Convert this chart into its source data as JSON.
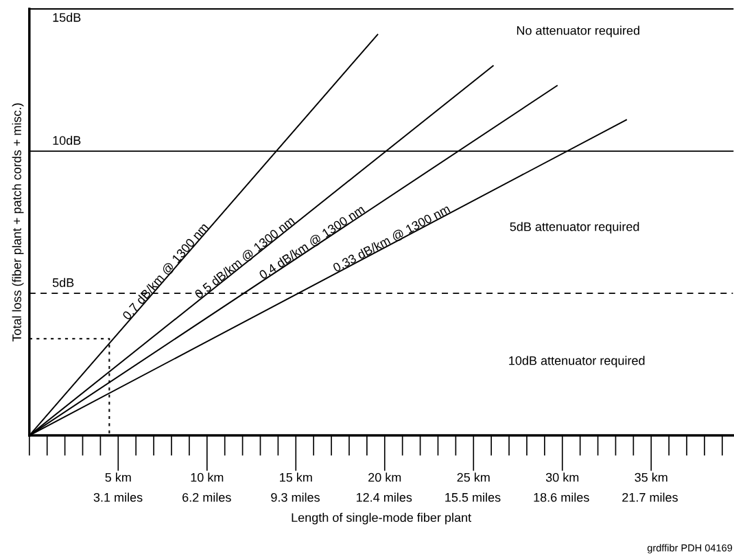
{
  "chart_data": {
    "type": "line",
    "xlabel": "Length of single-mode fiber plant",
    "ylabel": "Total loss (fiber plant + patch cords + misc.)",
    "xlim": [
      0,
      39.6
    ],
    "ylim": [
      0,
      15
    ],
    "xticks": [
      {
        "value": 5,
        "label": "5 km"
      },
      {
        "value": 10,
        "label": "10 km"
      },
      {
        "value": 15,
        "label": "15 km"
      },
      {
        "value": 20,
        "label": "20 km"
      },
      {
        "value": 25,
        "label": "25 km"
      },
      {
        "value": 30,
        "label": "30 km"
      },
      {
        "value": 35,
        "label": "35 km"
      }
    ],
    "x2lim": [
      0,
      24.6
    ],
    "x2ticks": [
      {
        "value": 3.1,
        "label": "3.1 miles"
      },
      {
        "value": 6.2,
        "label": "6.2 miles"
      },
      {
        "value": 9.3,
        "label": "9.3 miles"
      },
      {
        "value": 12.4,
        "label": "12.4 miles"
      },
      {
        "value": 15.5,
        "label": "15.5 miles"
      },
      {
        "value": 18.6,
        "label": "18.6 miles"
      },
      {
        "value": 21.7,
        "label": "21.7 miles"
      }
    ],
    "tick_labels": "x",
    "grid": false,
    "legend": false,
    "marker": "none",
    "series": [
      {
        "name": "0.7 dB/km @ 1300 nm",
        "color": "#000000",
        "x": [
          0,
          19.6
        ],
        "values": [
          0,
          14.1
        ]
      },
      {
        "name": "0.5 dB/km @ 1300 nm",
        "color": "#000000",
        "x": [
          0,
          26.1
        ],
        "values": [
          0,
          13.0
        ]
      },
      {
        "name": "0.4 dB/km @ 1300 nm",
        "color": "#000000",
        "x": [
          0,
          29.7
        ],
        "values": [
          0,
          12.3
        ]
      },
      {
        "name": "0.33 dB/km @ 1300 nm",
        "color": "#000000",
        "x": [
          0,
          33.6
        ],
        "values": [
          0,
          11.1
        ]
      },
      {
        "color": "#000000",
        "line_style": "dotted",
        "x": [
          0,
          4.5,
          4.5
        ],
        "values": [
          3.4,
          3.4,
          0
        ]
      }
    ],
    "ref_lines": [
      {
        "axis": "y",
        "value": 15,
        "label": "15dB",
        "color": "#000000",
        "line_style": "solid"
      },
      {
        "axis": "y",
        "value": 10,
        "label": "10dB",
        "color": "#000000",
        "line_style": "solid"
      },
      {
        "axis": "y",
        "value": 5,
        "label": "5dB",
        "color": "#000000",
        "line_style": "dashed"
      }
    ],
    "annotations": [
      "No attenuator required",
      "5dB attenuator required",
      "10dB attenuator required",
      "grdffibr PDH 04169"
    ]
  }
}
